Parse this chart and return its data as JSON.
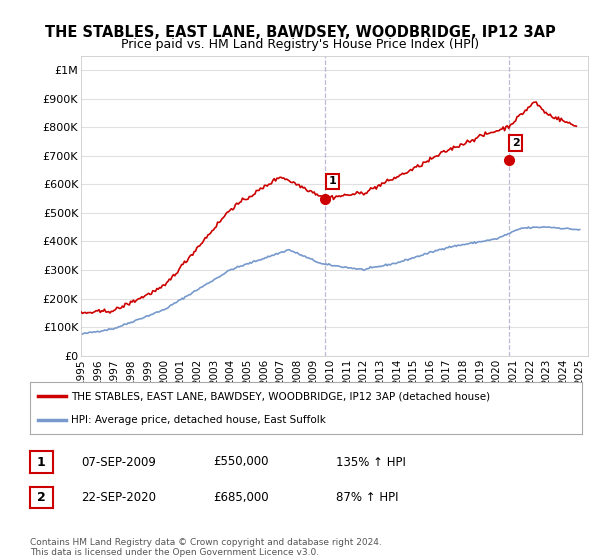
{
  "title": "THE STABLES, EAST LANE, BAWDSEY, WOODBRIDGE, IP12 3AP",
  "subtitle": "Price paid vs. HM Land Registry's House Price Index (HPI)",
  "ylabel_ticks": [
    "£0",
    "£100K",
    "£200K",
    "£300K",
    "£400K",
    "£500K",
    "£600K",
    "£700K",
    "£800K",
    "£900K",
    "£1M"
  ],
  "ytick_values": [
    0,
    100000,
    200000,
    300000,
    400000,
    500000,
    600000,
    700000,
    800000,
    900000,
    1000000
  ],
  "ylim": [
    0,
    1050000
  ],
  "xlim_start": 1995.0,
  "xlim_end": 2025.5,
  "red_line_color": "#cc0000",
  "blue_line_color": "#7799cc",
  "point1_x": 2009.69,
  "point1_y": 550000,
  "point2_x": 2020.72,
  "point2_y": 685000,
  "vline1_x": 2009.69,
  "vline2_x": 2020.72,
  "legend_label_red": "THE STABLES, EAST LANE, BAWDSEY, WOODBRIDGE, IP12 3AP (detached house)",
  "legend_label_blue": "HPI: Average price, detached house, East Suffolk",
  "table_row1": [
    "1",
    "07-SEP-2009",
    "£550,000",
    "135% ↑ HPI"
  ],
  "table_row2": [
    "2",
    "22-SEP-2020",
    "£685,000",
    "87% ↑ HPI"
  ],
  "footer": "Contains HM Land Registry data © Crown copyright and database right 2024.\nThis data is licensed under the Open Government Licence v3.0.",
  "background_color": "#ffffff",
  "grid_color": "#e0e0e0"
}
